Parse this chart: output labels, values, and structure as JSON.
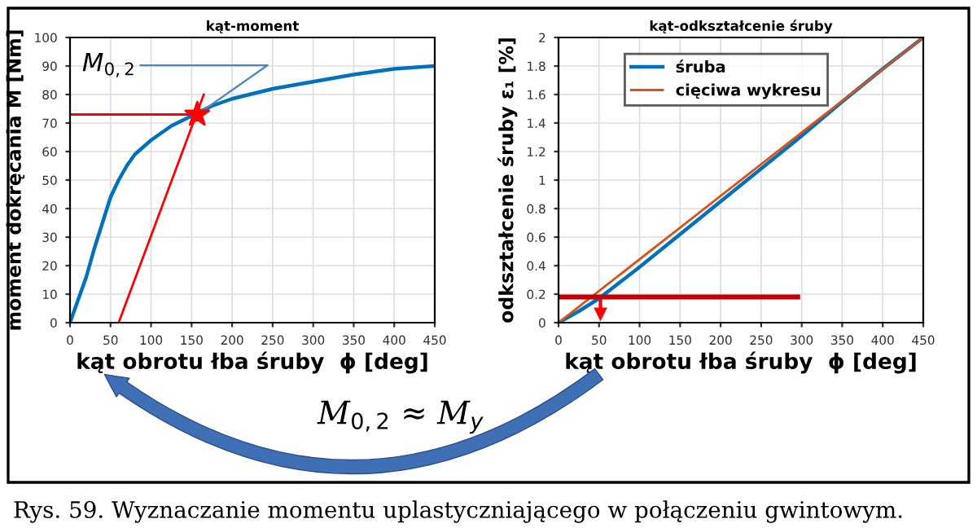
{
  "chart_data": [
    {
      "type": "line",
      "title": "kąt-moment",
      "xlabel": "kąt obrotu łba śruby  ϕ [deg]",
      "ylabel": "moment dokręcania M [Nm]",
      "xlim": [
        0,
        450
      ],
      "xticks": [
        0,
        50,
        100,
        150,
        200,
        250,
        300,
        350,
        400,
        450
      ],
      "ylim": [
        0,
        100
      ],
      "yticks": [
        0,
        10,
        20,
        30,
        40,
        50,
        60,
        70,
        80,
        90,
        100
      ],
      "grid": true,
      "legend": false,
      "series": [
        {
          "color": "#0072bd",
          "x": [
            0,
            10,
            20,
            30,
            40,
            50,
            60,
            70,
            80,
            100,
            125,
            150,
            175,
            200,
            250,
            300,
            350,
            400,
            450
          ],
          "values": [
            0,
            8,
            16,
            26,
            35,
            44,
            50,
            55,
            59,
            64,
            69,
            72.5,
            76,
            78.5,
            82,
            84.5,
            87,
            89,
            90
          ]
        },
        {
          "color": "#ff0000",
          "x": [
            60,
            165
          ],
          "values": [
            0,
            80
          ]
        },
        {
          "color": "#ff0000",
          "x": [
            0,
            157
          ],
          "values": [
            73,
            73
          ]
        },
        {
          "type": "scatter",
          "color": "#ff0000",
          "marker": "star",
          "x": [
            157
          ],
          "values": [
            73
          ]
        }
      ],
      "annotations": [
        {
          "text": "M$_{0,2}$",
          "x": 157,
          "y": 73
        },
        "M$_{0,2}$ ≈ M$_{y}$",
        "Rys. 59. Wyznaczanie momentu uplastyczniającego w połączeniu gwintowym."
      ]
    },
    {
      "type": "line",
      "title": "kąt-odkształcenie śruby",
      "xlabel": "kąt obrotu łba śruby  ϕ [deg]",
      "ylabel": "odkształcenie śruby ε₁ [%]",
      "xlim": [
        0,
        450
      ],
      "xticks": [
        0,
        50,
        100,
        150,
        200,
        250,
        300,
        350,
        400,
        450
      ],
      "ylim": [
        0,
        2
      ],
      "yticks": [
        0,
        0.2,
        0.4,
        0.6,
        0.8,
        1,
        1.2,
        1.4,
        1.6,
        1.8,
        2
      ],
      "grid": true,
      "legend": "top left",
      "series": [
        {
          "name": "śruba",
          "color": "#0072bd",
          "x": [
            0,
            25,
            50,
            100,
            150,
            200,
            250,
            300,
            350,
            400,
            450
          ],
          "values": [
            0,
            0.08,
            0.17,
            0.39,
            0.62,
            0.85,
            1.08,
            1.31,
            1.55,
            1.78,
            2
          ]
        },
        {
          "name": "cięciwa wykresu",
          "color": "#d95319",
          "x": [
            0,
            450
          ],
          "values": [
            0,
            2
          ]
        },
        {
          "color": "#c00000",
          "x": [
            0,
            295
          ],
          "values": [
            0.18,
            0.18
          ]
        }
      ]
    }
  ]
}
